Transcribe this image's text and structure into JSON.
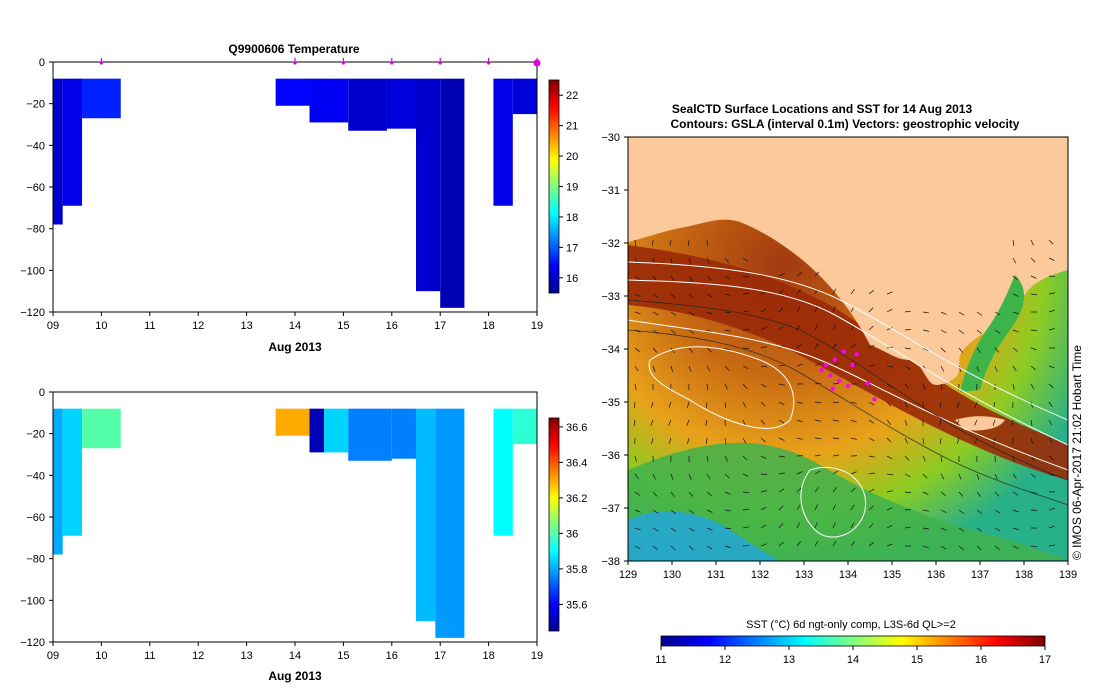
{
  "chart_data": [
    {
      "type": "heatmap",
      "title": "Q9900606  Temperature",
      "xlabel": "Aug 2013",
      "ylabel": "",
      "x_tick_labels": [
        "09",
        "10",
        "11",
        "12",
        "13",
        "14",
        "15",
        "16",
        "17",
        "18",
        "19"
      ],
      "xlim": [
        9,
        19
      ],
      "ylim": [
        -120,
        0
      ],
      "y_tick_labels": [
        "0",
        "−20",
        "−40",
        "−60",
        "−80",
        "−100",
        "−120"
      ],
      "profile_markers_day": [
        10,
        14,
        15,
        16,
        17,
        18,
        19
      ],
      "colorbar": {
        "min": 15.5,
        "max": 22.5,
        "tick_labels": [
          "16",
          "17",
          "18",
          "19",
          "20",
          "21",
          "22"
        ],
        "colormap": "jet"
      },
      "profiles": [
        {
          "start": 9.0,
          "end": 9.2,
          "bottom": -78,
          "value": 16.0
        },
        {
          "start": 9.2,
          "end": 9.6,
          "bottom": -69,
          "value": 16.2
        },
        {
          "start": 9.6,
          "end": 10.4,
          "bottom": -27,
          "value": 16.6
        },
        {
          "start": 13.6,
          "end": 14.3,
          "bottom": -21,
          "value": 16.4
        },
        {
          "start": 14.3,
          "end": 15.1,
          "bottom": -29,
          "value": 16.3
        },
        {
          "start": 15.1,
          "end": 15.9,
          "bottom": -33,
          "value": 16.0
        },
        {
          "start": 15.9,
          "end": 16.5,
          "bottom": -32,
          "value": 16.1
        },
        {
          "start": 16.5,
          "end": 17.0,
          "bottom": -110,
          "value": 16.0
        },
        {
          "start": 17.0,
          "end": 17.5,
          "bottom": -118,
          "value": 15.8
        },
        {
          "start": 18.1,
          "end": 18.5,
          "bottom": -69,
          "value": 16.2
        },
        {
          "start": 18.5,
          "end": 19.0,
          "bottom": -25,
          "value": 16.1
        }
      ]
    },
    {
      "type": "heatmap",
      "title": "",
      "xlabel": "Aug 2013",
      "ylabel": "",
      "x_tick_labels": [
        "09",
        "10",
        "11",
        "12",
        "13",
        "14",
        "15",
        "16",
        "17",
        "18",
        "19"
      ],
      "xlim": [
        9,
        19
      ],
      "ylim": [
        -120,
        0
      ],
      "y_tick_labels": [
        "0",
        "−20",
        "−40",
        "−60",
        "−80",
        "−100",
        "−120"
      ],
      "colorbar": {
        "min": 35.45,
        "max": 36.65,
        "tick_labels": [
          "35.6",
          "35.8",
          "36",
          "36.2",
          "36.4",
          "36.6"
        ],
        "colormap": "jet"
      },
      "profiles": [
        {
          "start": 9.0,
          "end": 9.2,
          "bottom": -78,
          "value": 35.8
        },
        {
          "start": 9.2,
          "end": 9.6,
          "bottom": -69,
          "value": 35.85
        },
        {
          "start": 9.6,
          "end": 10.4,
          "bottom": -27,
          "value": 36.0
        },
        {
          "start": 13.6,
          "end": 14.3,
          "bottom": -21,
          "value": 36.3
        },
        {
          "start": 14.3,
          "end": 14.6,
          "bottom": -29,
          "value": 35.5
        },
        {
          "start": 14.6,
          "end": 15.1,
          "bottom": -29,
          "value": 35.85
        },
        {
          "start": 15.1,
          "end": 16.0,
          "bottom": -33,
          "value": 35.75
        },
        {
          "start": 16.0,
          "end": 16.5,
          "bottom": -32,
          "value": 35.75
        },
        {
          "start": 16.5,
          "end": 16.9,
          "bottom": -110,
          "value": 35.82
        },
        {
          "start": 16.9,
          "end": 17.5,
          "bottom": -118,
          "value": 35.78
        },
        {
          "start": 18.1,
          "end": 18.5,
          "bottom": -69,
          "value": 35.9
        },
        {
          "start": 18.5,
          "end": 19.0,
          "bottom": -25,
          "value": 35.95
        }
      ]
    },
    {
      "type": "heatmap",
      "title": "SealCTD Surface Locations and SST for 14 Aug 2013",
      "subtitle": "Contours: GSLA (interval 0.1m)  Vectors: geostrophic velocity",
      "xlabel": "",
      "ylabel": "",
      "x_tick_labels": [
        "129",
        "130",
        "131",
        "132",
        "133",
        "134",
        "135",
        "136",
        "137",
        "138",
        "139"
      ],
      "y_tick_labels": [
        "−30",
        "−31",
        "−32",
        "−33",
        "−34",
        "−35",
        "−36",
        "−37",
        "−38"
      ],
      "xlim": [
        129,
        139
      ],
      "ylim": [
        -38,
        -30
      ],
      "colorbar": {
        "label": "SST (°C) 6d ngt-only comp, L3S-6d QL>=2",
        "min": 11,
        "max": 17,
        "tick_labels": [
          "11",
          "12",
          "13",
          "14",
          "15",
          "16",
          "17"
        ],
        "colormap": "jet"
      },
      "seal_positions": [
        [
          133.5,
          -34.3
        ],
        [
          133.7,
          -34.2
        ],
        [
          133.9,
          -34.05
        ],
        [
          134.1,
          -34.3
        ],
        [
          133.6,
          -34.5
        ],
        [
          133.8,
          -34.6
        ],
        [
          134.0,
          -34.7
        ],
        [
          134.45,
          -34.65
        ],
        [
          134.6,
          -34.95
        ],
        [
          133.4,
          -34.4
        ],
        [
          134.2,
          -34.1
        ],
        [
          133.65,
          -34.75
        ]
      ],
      "credit": "© IMOS 06-Apr-2017 21:02 Hobart Time"
    }
  ]
}
